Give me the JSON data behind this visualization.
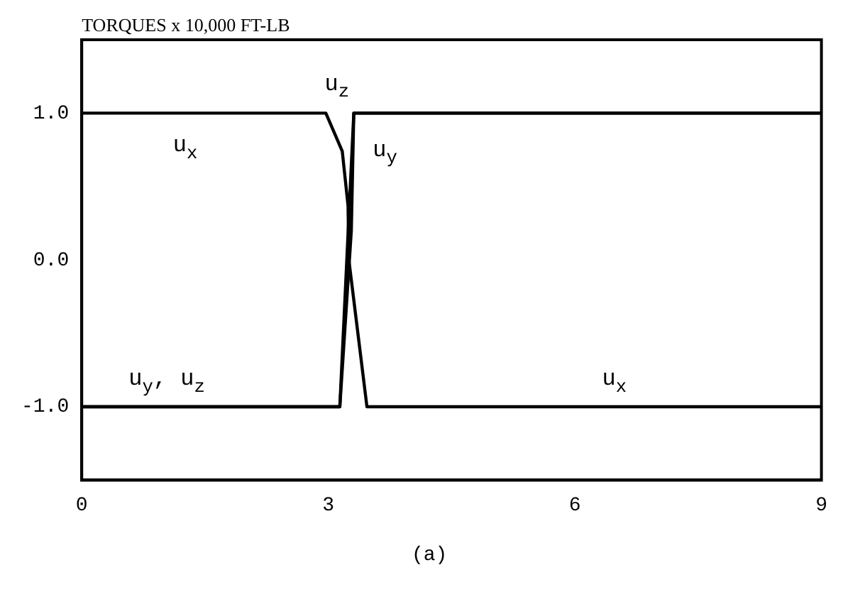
{
  "chart_data": {
    "type": "line",
    "title": "TORQUES x 10,000 FT-LB",
    "series": [
      {
        "color": "#000000",
        "x": [
          0,
          2.97,
          3.17,
          3.24,
          3.25,
          3.47,
          9
        ],
        "values": [
          1,
          1,
          0.74,
          0.37,
          0,
          -1,
          -1
        ]
      },
      {
        "color": "#000000",
        "x": [
          0,
          3.14,
          3.28,
          3.31,
          9
        ],
        "values": [
          -1,
          -1,
          0.2,
          1,
          1
        ]
      },
      {
        "color": "#000000",
        "x": [
          0,
          3.14,
          3.31,
          9
        ],
        "values": [
          -1,
          -1,
          1,
          1
        ]
      }
    ],
    "xlim": [
      0,
      9
    ],
    "xticks": [
      0,
      3,
      6,
      9
    ],
    "ylim": [
      -1.5,
      1.5
    ],
    "yticks": [
      {
        "value": 1,
        "label": "1.0"
      },
      {
        "value": 0,
        "label": "0.0"
      },
      {
        "value": -1,
        "label": "-1.0"
      }
    ],
    "grid": false,
    "legend": false,
    "marker": "none",
    "line_style": "solid",
    "annotations": [
      "u$_{x}$",
      "u$_{y}$, u$_{z}$",
      "u$_{z}$",
      "u$_{y}$",
      "u$_{x}$",
      "(a)"
    ]
  }
}
